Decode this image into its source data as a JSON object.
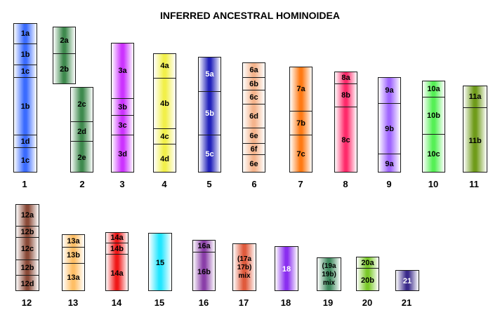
{
  "title": "INFERRED ANCESTRAL HOMINOIDEA",
  "chromosomes": [
    {
      "number": "1",
      "color": "#3a6bff",
      "text_color": "#000000",
      "bands": [
        {
          "label": "1a"
        },
        {
          "label": "1b"
        },
        {
          "label": "1c"
        },
        {
          "label": "1b"
        },
        {
          "label": "1d"
        },
        {
          "label": "1c"
        }
      ]
    },
    {
      "number": "2",
      "color": "#3f8a4e",
      "text_color": "#000000",
      "bands": [
        {
          "label": "2a"
        },
        {
          "label": "2b"
        }
      ]
    },
    {
      "number": "2",
      "color": "#3f8a4e",
      "text_color": "#000000",
      "bands": [
        {
          "label": "2c"
        },
        {
          "label": "2d"
        },
        {
          "label": "2e"
        }
      ]
    },
    {
      "number": "3",
      "color": "#cc33ff",
      "text_color": "#000000",
      "bands": [
        {
          "label": "3a"
        },
        {
          "label": "3b"
        },
        {
          "label": "3c"
        },
        {
          "label": "3d"
        }
      ]
    },
    {
      "number": "4",
      "color": "#f2f04a",
      "text_color": "#000000",
      "bands": [
        {
          "label": "4a"
        },
        {
          "label": "4b"
        },
        {
          "label": "4c"
        },
        {
          "label": "4d"
        }
      ]
    },
    {
      "number": "5",
      "color": "#2222bb",
      "text_color": "#ffffff",
      "bands": [
        {
          "label": "5a"
        },
        {
          "label": "5b"
        },
        {
          "label": "5c"
        }
      ]
    },
    {
      "number": "6",
      "color": "#f5b48c",
      "text_color": "#000000",
      "bands": [
        {
          "label": "6a"
        },
        {
          "label": "6b"
        },
        {
          "label": "6c"
        },
        {
          "label": "6d"
        },
        {
          "label": "6e"
        },
        {
          "label": "6f"
        },
        {
          "label": "6e"
        }
      ]
    },
    {
      "number": "7",
      "color": "#ff7a14",
      "text_color": "#000000",
      "bands": [
        {
          "label": "7a"
        },
        {
          "label": "7b"
        },
        {
          "label": "7c"
        }
      ]
    },
    {
      "number": "8",
      "color": "#ff2a6a",
      "text_color": "#000000",
      "bands": [
        {
          "label": "8a"
        },
        {
          "label": "8b"
        },
        {
          "label": "8c"
        }
      ]
    },
    {
      "number": "9",
      "color": "#a066ff",
      "text_color": "#000000",
      "bands": [
        {
          "label": "9a"
        },
        {
          "label": "9b"
        },
        {
          "label": "9a"
        }
      ]
    },
    {
      "number": "10",
      "color": "#55f055",
      "text_color": "#000000",
      "bands": [
        {
          "label": "10a"
        },
        {
          "label": "10b"
        },
        {
          "label": "10c"
        }
      ]
    },
    {
      "number": "11",
      "color": "#6f9b1a",
      "text_color": "#000000",
      "bands": [
        {
          "label": "11a"
        },
        {
          "label": "11b"
        }
      ]
    },
    {
      "number": "12",
      "color": "#8a4a38",
      "text_color": "#000000",
      "bands": [
        {
          "label": "12a"
        },
        {
          "label": "12b"
        },
        {
          "label": "12c"
        },
        {
          "label": "12b"
        },
        {
          "label": "12d"
        }
      ]
    },
    {
      "number": "13",
      "color": "#ffbf66",
      "text_color": "#000000",
      "bands": [
        {
          "label": "13a"
        },
        {
          "label": "13b"
        },
        {
          "label": "13a"
        }
      ]
    },
    {
      "number": "14",
      "color": "#f01818",
      "text_color": "#000000",
      "bands": [
        {
          "label": "14a"
        },
        {
          "label": "14b"
        },
        {
          "label": "14a"
        }
      ]
    },
    {
      "number": "15",
      "color": "#22e6ff",
      "text_color": "#000000",
      "bands": [
        {
          "label": "15"
        }
      ]
    },
    {
      "number": "16",
      "color": "#8a3ea8",
      "text_color": "#000000",
      "bands": [
        {
          "label": "16a"
        },
        {
          "label": "16b"
        }
      ]
    },
    {
      "number": "17",
      "color": "#e05a3c",
      "text_color": "#000000",
      "bands": [
        {
          "label": "(17a\n17b)\nmix"
        }
      ]
    },
    {
      "number": "18",
      "color": "#8a2ef0",
      "text_color": "#ffffff",
      "bands": [
        {
          "label": "18"
        }
      ]
    },
    {
      "number": "19",
      "color": "#3f8a5e",
      "text_color": "#000000",
      "bands": [
        {
          "label": "(19a\n19b)\nmix"
        }
      ]
    },
    {
      "number": "20",
      "color": "#7ac82a",
      "text_color": "#000000",
      "bands": [
        {
          "label": "20a"
        },
        {
          "label": "20b"
        }
      ]
    },
    {
      "number": "21",
      "color": "#3a2a8a",
      "text_color": "#ffffff",
      "bands": [
        {
          "label": "21"
        }
      ]
    }
  ]
}
